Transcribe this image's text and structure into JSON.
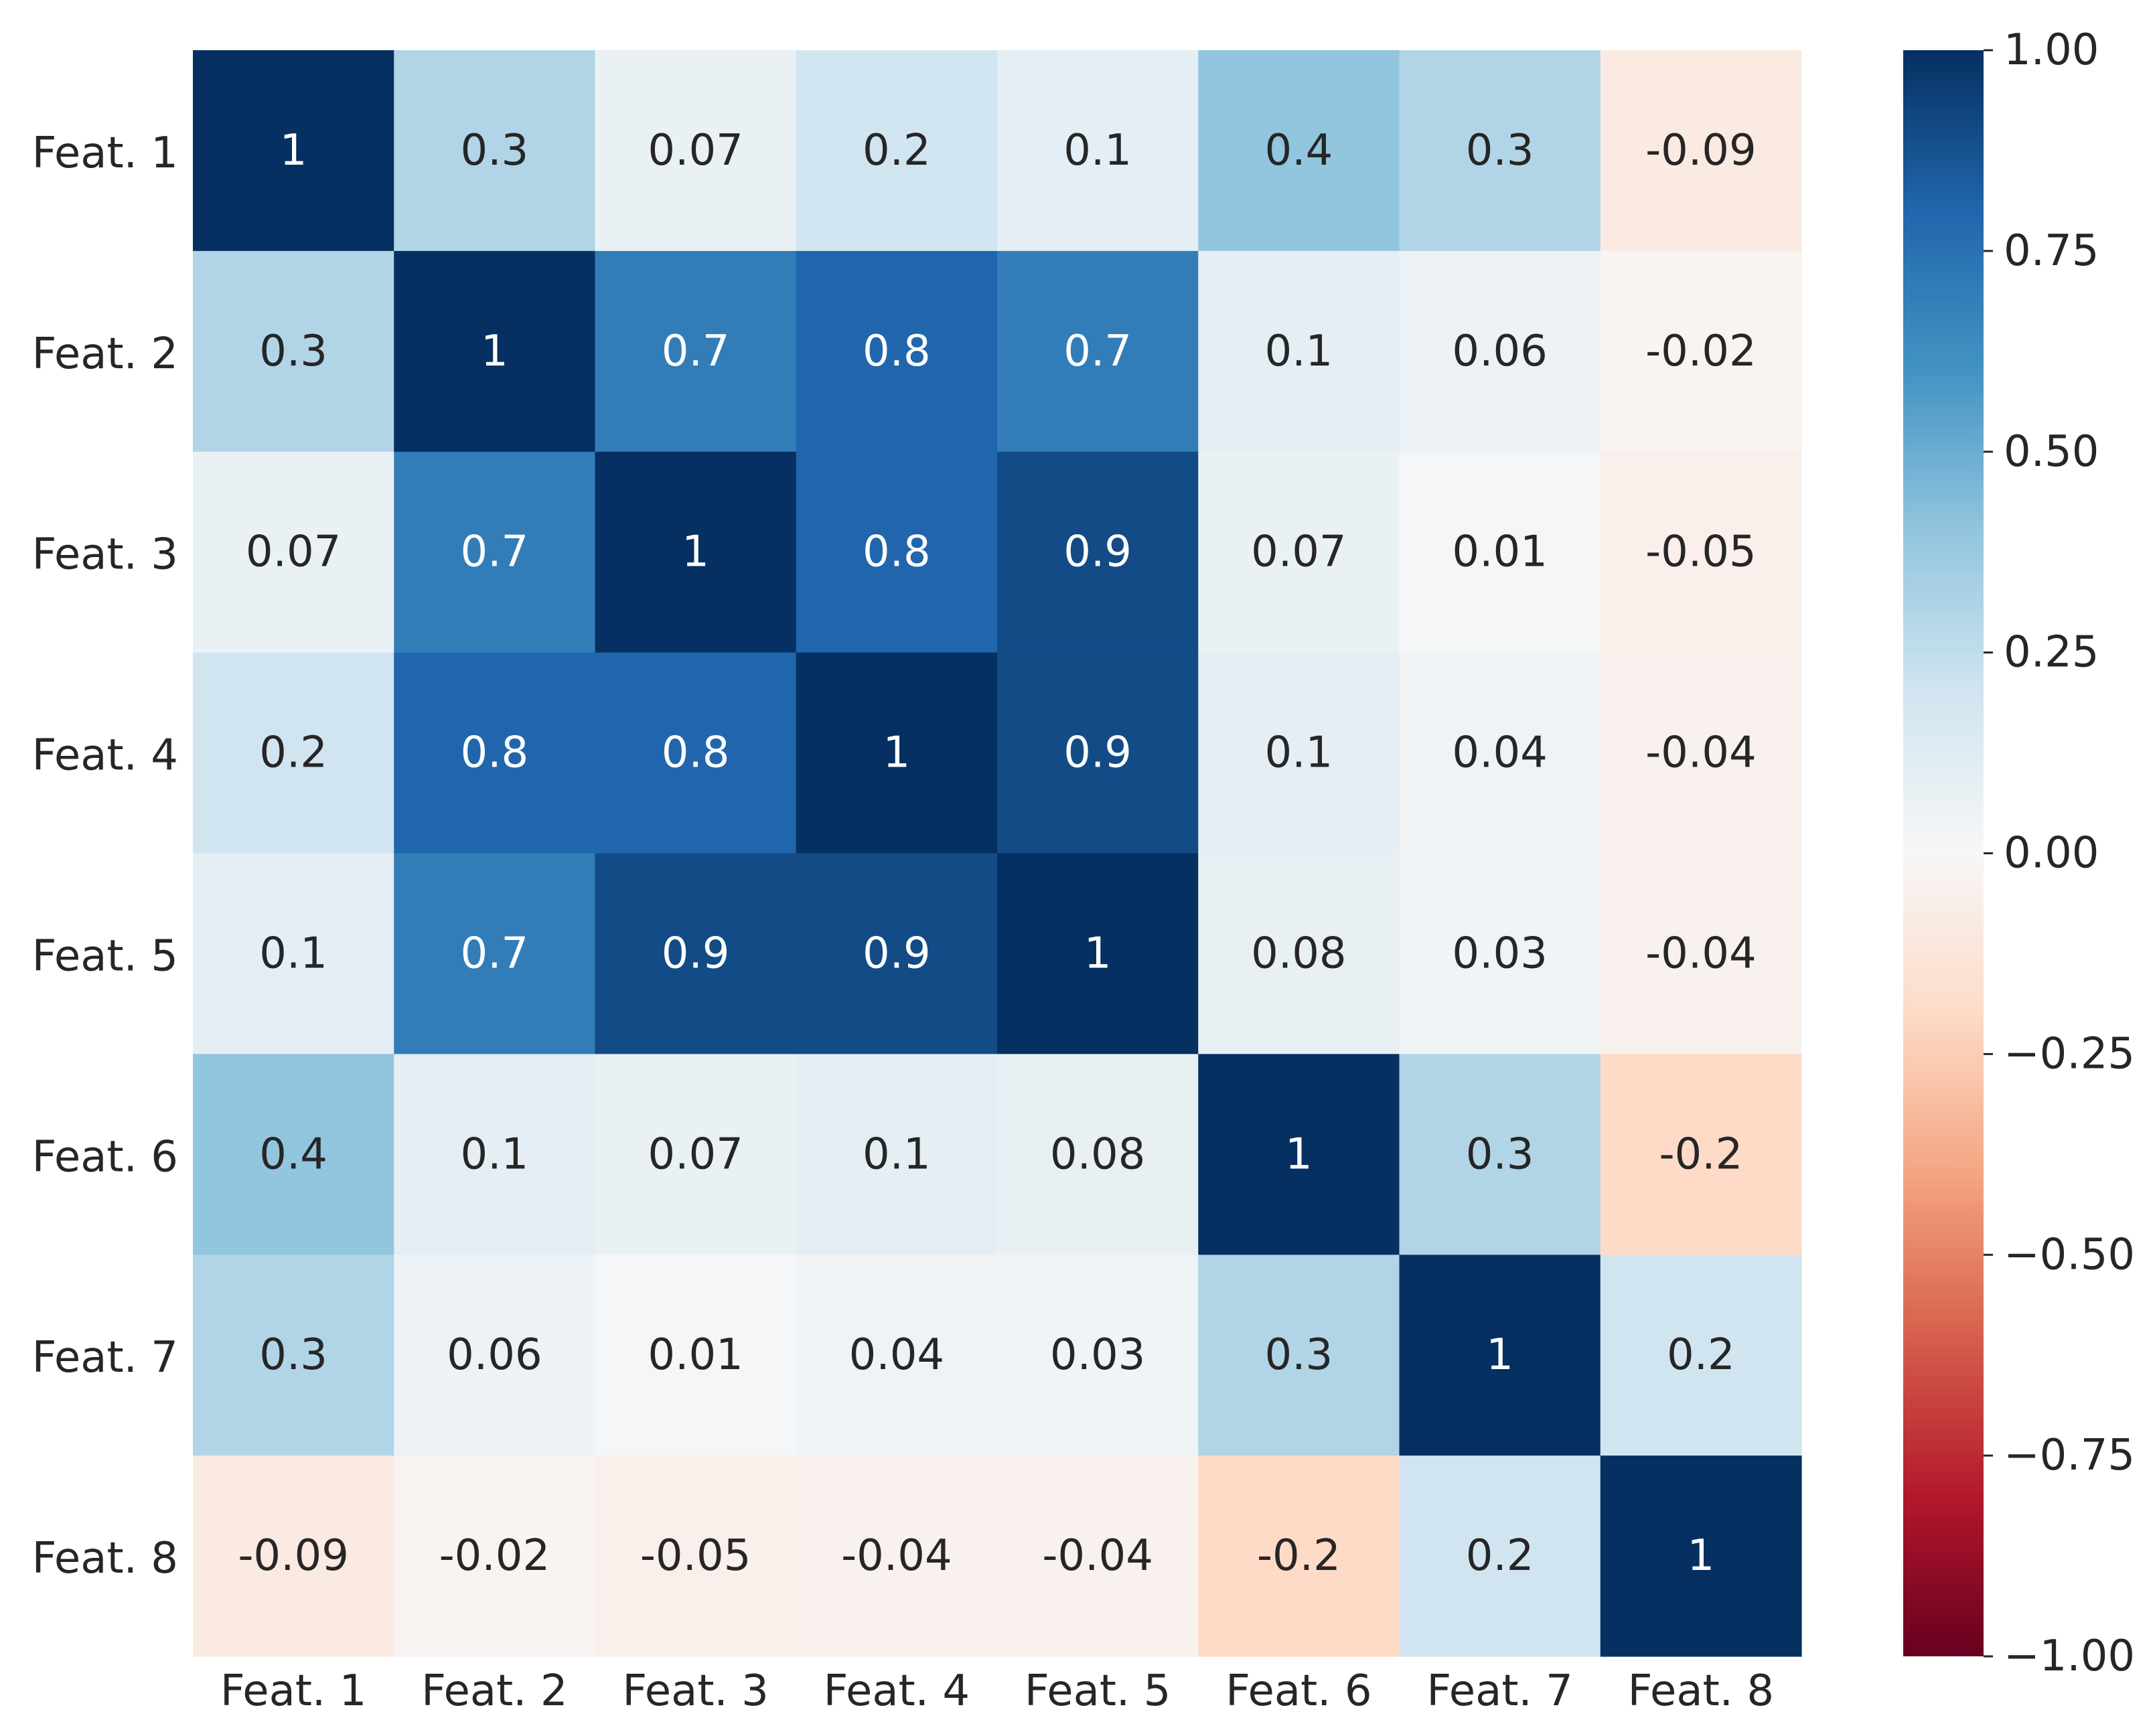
{
  "chart_data": {
    "type": "heatmap",
    "title": "",
    "xlabel": "",
    "ylabel": "",
    "x_categories": [
      "Feat. 1",
      "Feat. 2",
      "Feat. 3",
      "Feat. 4",
      "Feat. 5",
      "Feat. 6",
      "Feat. 7",
      "Feat. 8"
    ],
    "y_categories": [
      "Feat. 1",
      "Feat. 2",
      "Feat. 3",
      "Feat. 4",
      "Feat. 5",
      "Feat. 6",
      "Feat. 7",
      "Feat. 8"
    ],
    "values": [
      [
        1,
        0.3,
        0.07,
        0.2,
        0.1,
        0.4,
        0.3,
        -0.09
      ],
      [
        0.3,
        1,
        0.7,
        0.8,
        0.7,
        0.1,
        0.06,
        -0.02
      ],
      [
        0.07,
        0.7,
        1,
        0.8,
        0.9,
        0.07,
        0.01,
        -0.05
      ],
      [
        0.2,
        0.8,
        0.8,
        1,
        0.9,
        0.1,
        0.04,
        -0.04
      ],
      [
        0.1,
        0.7,
        0.9,
        0.9,
        1,
        0.08,
        0.03,
        -0.04
      ],
      [
        0.4,
        0.1,
        0.07,
        0.1,
        0.08,
        1,
        0.3,
        -0.2
      ],
      [
        0.3,
        0.06,
        0.01,
        0.04,
        0.03,
        0.3,
        1,
        0.2
      ],
      [
        -0.09,
        -0.02,
        -0.05,
        -0.04,
        -0.04,
        -0.2,
        0.2,
        1
      ]
    ],
    "cell_labels": [
      [
        "1",
        "0.3",
        "0.07",
        "0.2",
        "0.1",
        "0.4",
        "0.3",
        "-0.09"
      ],
      [
        "0.3",
        "1",
        "0.7",
        "0.8",
        "0.7",
        "0.1",
        "0.06",
        "-0.02"
      ],
      [
        "0.07",
        "0.7",
        "1",
        "0.8",
        "0.9",
        "0.07",
        "0.01",
        "-0.05"
      ],
      [
        "0.2",
        "0.8",
        "0.8",
        "1",
        "0.9",
        "0.1",
        "0.04",
        "-0.04"
      ],
      [
        "0.1",
        "0.7",
        "0.9",
        "0.9",
        "1",
        "0.08",
        "0.03",
        "-0.04"
      ],
      [
        "0.4",
        "0.1",
        "0.07",
        "0.1",
        "0.08",
        "1",
        "0.3",
        "-0.2"
      ],
      [
        "0.3",
        "0.06",
        "0.01",
        "0.04",
        "0.03",
        "0.3",
        "1",
        "0.2"
      ],
      [
        "-0.09",
        "-0.02",
        "-0.05",
        "-0.04",
        "-0.04",
        "-0.2",
        "0.2",
        "1"
      ]
    ],
    "colorbar": {
      "colormap": "RdBu",
      "vmin": -1.0,
      "vmax": 1.0,
      "ticks": [
        1.0,
        0.75,
        0.5,
        0.25,
        0.0,
        -0.25,
        -0.5,
        -0.75,
        -1.0
      ],
      "tick_labels": [
        "1.00",
        "0.75",
        "0.50",
        "0.25",
        "0.00",
        "−0.25",
        "−0.50",
        "−0.75",
        "−1.00"
      ]
    },
    "colors": {
      "text_dark": "#262626",
      "text_light": "#ffffff",
      "background": "#ffffff"
    }
  }
}
